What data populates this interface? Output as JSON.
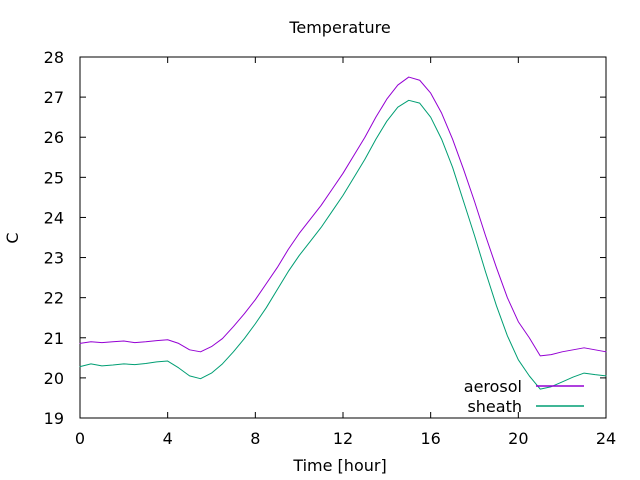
{
  "chart_data": {
    "type": "line",
    "title": "Temperature",
    "xlabel": "Time [hour]",
    "ylabel": "C",
    "xlim": [
      0,
      24
    ],
    "ylim": [
      19,
      28
    ],
    "x_ticks": [
      0,
      4,
      8,
      12,
      16,
      20,
      24
    ],
    "y_ticks": [
      19,
      20,
      21,
      22,
      23,
      24,
      25,
      26,
      27,
      28
    ],
    "grid": false,
    "legend_position": "bottom-right",
    "series": [
      {
        "name": "aerosol",
        "color": "#9400d3",
        "x": [
          0,
          0.5,
          1,
          1.5,
          2,
          2.5,
          3,
          3.5,
          4,
          4.5,
          5,
          5.5,
          6,
          6.5,
          7,
          7.5,
          8,
          8.5,
          9,
          9.5,
          10,
          10.5,
          11,
          11.5,
          12,
          12.5,
          13,
          13.5,
          14,
          14.5,
          15,
          15.5,
          16,
          16.5,
          17,
          17.5,
          18,
          18.5,
          19,
          19.5,
          20,
          20.5,
          21,
          21.5,
          22,
          22.5,
          23,
          23.5,
          24
        ],
        "values": [
          20.86,
          20.9,
          20.88,
          20.9,
          20.92,
          20.88,
          20.9,
          20.93,
          20.95,
          20.86,
          20.7,
          20.65,
          20.78,
          20.98,
          21.28,
          21.6,
          21.95,
          22.35,
          22.75,
          23.2,
          23.6,
          23.95,
          24.3,
          24.7,
          25.1,
          25.55,
          26.0,
          26.5,
          26.95,
          27.3,
          27.5,
          27.42,
          27.1,
          26.6,
          25.95,
          25.2,
          24.4,
          23.55,
          22.75,
          22.0,
          21.4,
          21.0,
          20.55,
          20.58,
          20.65,
          20.7,
          20.75,
          20.7,
          20.65
        ]
      },
      {
        "name": "sheath",
        "color": "#009e73",
        "x": [
          0,
          0.5,
          1,
          1.5,
          2,
          2.5,
          3,
          3.5,
          4,
          4.5,
          5,
          5.5,
          6,
          6.5,
          7,
          7.5,
          8,
          8.5,
          9,
          9.5,
          10,
          10.5,
          11,
          11.5,
          12,
          12.5,
          13,
          13.5,
          14,
          14.5,
          15,
          15.5,
          16,
          16.5,
          17,
          17.5,
          18,
          18.5,
          19,
          19.5,
          20,
          20.5,
          21,
          21.5,
          22,
          22.5,
          23,
          23.5,
          24
        ],
        "values": [
          20.28,
          20.35,
          20.3,
          20.32,
          20.35,
          20.33,
          20.36,
          20.4,
          20.42,
          20.25,
          20.05,
          19.98,
          20.12,
          20.35,
          20.65,
          20.98,
          21.35,
          21.75,
          22.2,
          22.65,
          23.05,
          23.4,
          23.75,
          24.15,
          24.55,
          25.0,
          25.45,
          25.95,
          26.4,
          26.75,
          26.92,
          26.85,
          26.5,
          25.95,
          25.25,
          24.4,
          23.55,
          22.65,
          21.8,
          21.05,
          20.45,
          20.05,
          19.72,
          19.78,
          19.9,
          20.02,
          20.12,
          20.08,
          20.05
        ]
      }
    ]
  }
}
